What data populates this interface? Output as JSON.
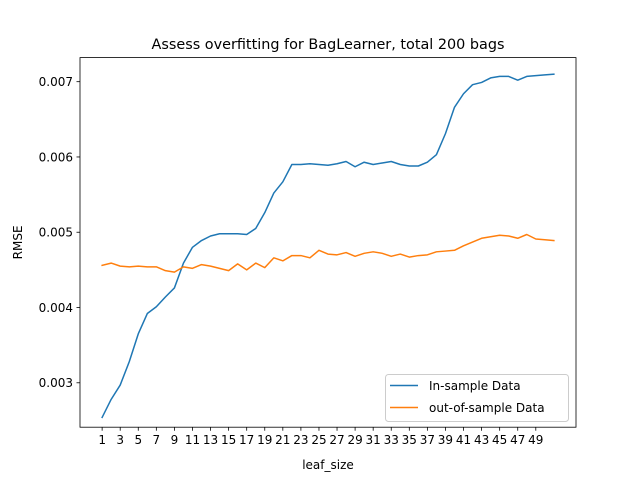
{
  "chart_data": {
    "type": "line",
    "title": "Assess overfitting for BagLearner, total 200 bags",
    "xlabel": "leaf_size",
    "ylabel": "RMSE",
    "xlim": [
      -1.45,
      53.45
    ],
    "ylim": [
      0.00241,
      0.00732
    ],
    "xticks": [
      1,
      3,
      5,
      7,
      9,
      11,
      13,
      15,
      17,
      19,
      21,
      23,
      25,
      27,
      29,
      31,
      33,
      35,
      37,
      39,
      41,
      43,
      45,
      47,
      49
    ],
    "yticks": [
      0.003,
      0.004,
      0.005,
      0.006,
      0.007
    ],
    "yticklabels": [
      "0.003",
      "0.004",
      "0.005",
      "0.006",
      "0.007"
    ],
    "grid": false,
    "legend_position": "lower right",
    "x": [
      1,
      2,
      3,
      4,
      5,
      6,
      7,
      8,
      9,
      10,
      11,
      12,
      13,
      14,
      15,
      16,
      17,
      18,
      19,
      20,
      21,
      22,
      23,
      24,
      25,
      26,
      27,
      28,
      29,
      30,
      31,
      32,
      33,
      34,
      35,
      36,
      37,
      38,
      39,
      40,
      41,
      42,
      43,
      44,
      45,
      46,
      47,
      48,
      49,
      50,
      51
    ],
    "series": [
      {
        "name": "In-sample Data",
        "color": "#1f77b4",
        "values": [
          0.00254,
          0.00278,
          0.00297,
          0.00328,
          0.00365,
          0.00392,
          0.00401,
          0.00414,
          0.00426,
          0.00459,
          0.0048,
          0.00489,
          0.00495,
          0.00498,
          0.00498,
          0.00498,
          0.00497,
          0.00505,
          0.00526,
          0.00552,
          0.00567,
          0.0059,
          0.0059,
          0.00591,
          0.0059,
          0.00589,
          0.00591,
          0.00594,
          0.00587,
          0.00593,
          0.0059,
          0.00592,
          0.00594,
          0.0059,
          0.00588,
          0.00588,
          0.00593,
          0.00603,
          0.00631,
          0.00666,
          0.00684,
          0.00696,
          0.00699,
          0.00705,
          0.00707,
          0.00707,
          0.00702,
          0.00707,
          0.00708,
          0.00709,
          0.0071
        ]
      },
      {
        "name": "out-of-sample Data",
        "color": "#ff7f0e",
        "values": [
          0.00456,
          0.00459,
          0.00455,
          0.00454,
          0.00455,
          0.00454,
          0.00454,
          0.00449,
          0.00447,
          0.00454,
          0.00452,
          0.00457,
          0.00455,
          0.00452,
          0.00449,
          0.00458,
          0.0045,
          0.00459,
          0.00453,
          0.00466,
          0.00462,
          0.00469,
          0.00469,
          0.00466,
          0.00476,
          0.00471,
          0.0047,
          0.00473,
          0.00468,
          0.00472,
          0.00474,
          0.00472,
          0.00468,
          0.00471,
          0.00467,
          0.00469,
          0.0047,
          0.00474,
          0.00475,
          0.00476,
          0.00482,
          0.00487,
          0.00492,
          0.00494,
          0.00496,
          0.00495,
          0.00492,
          0.00497,
          0.00491,
          0.0049,
          0.00489
        ]
      }
    ]
  }
}
